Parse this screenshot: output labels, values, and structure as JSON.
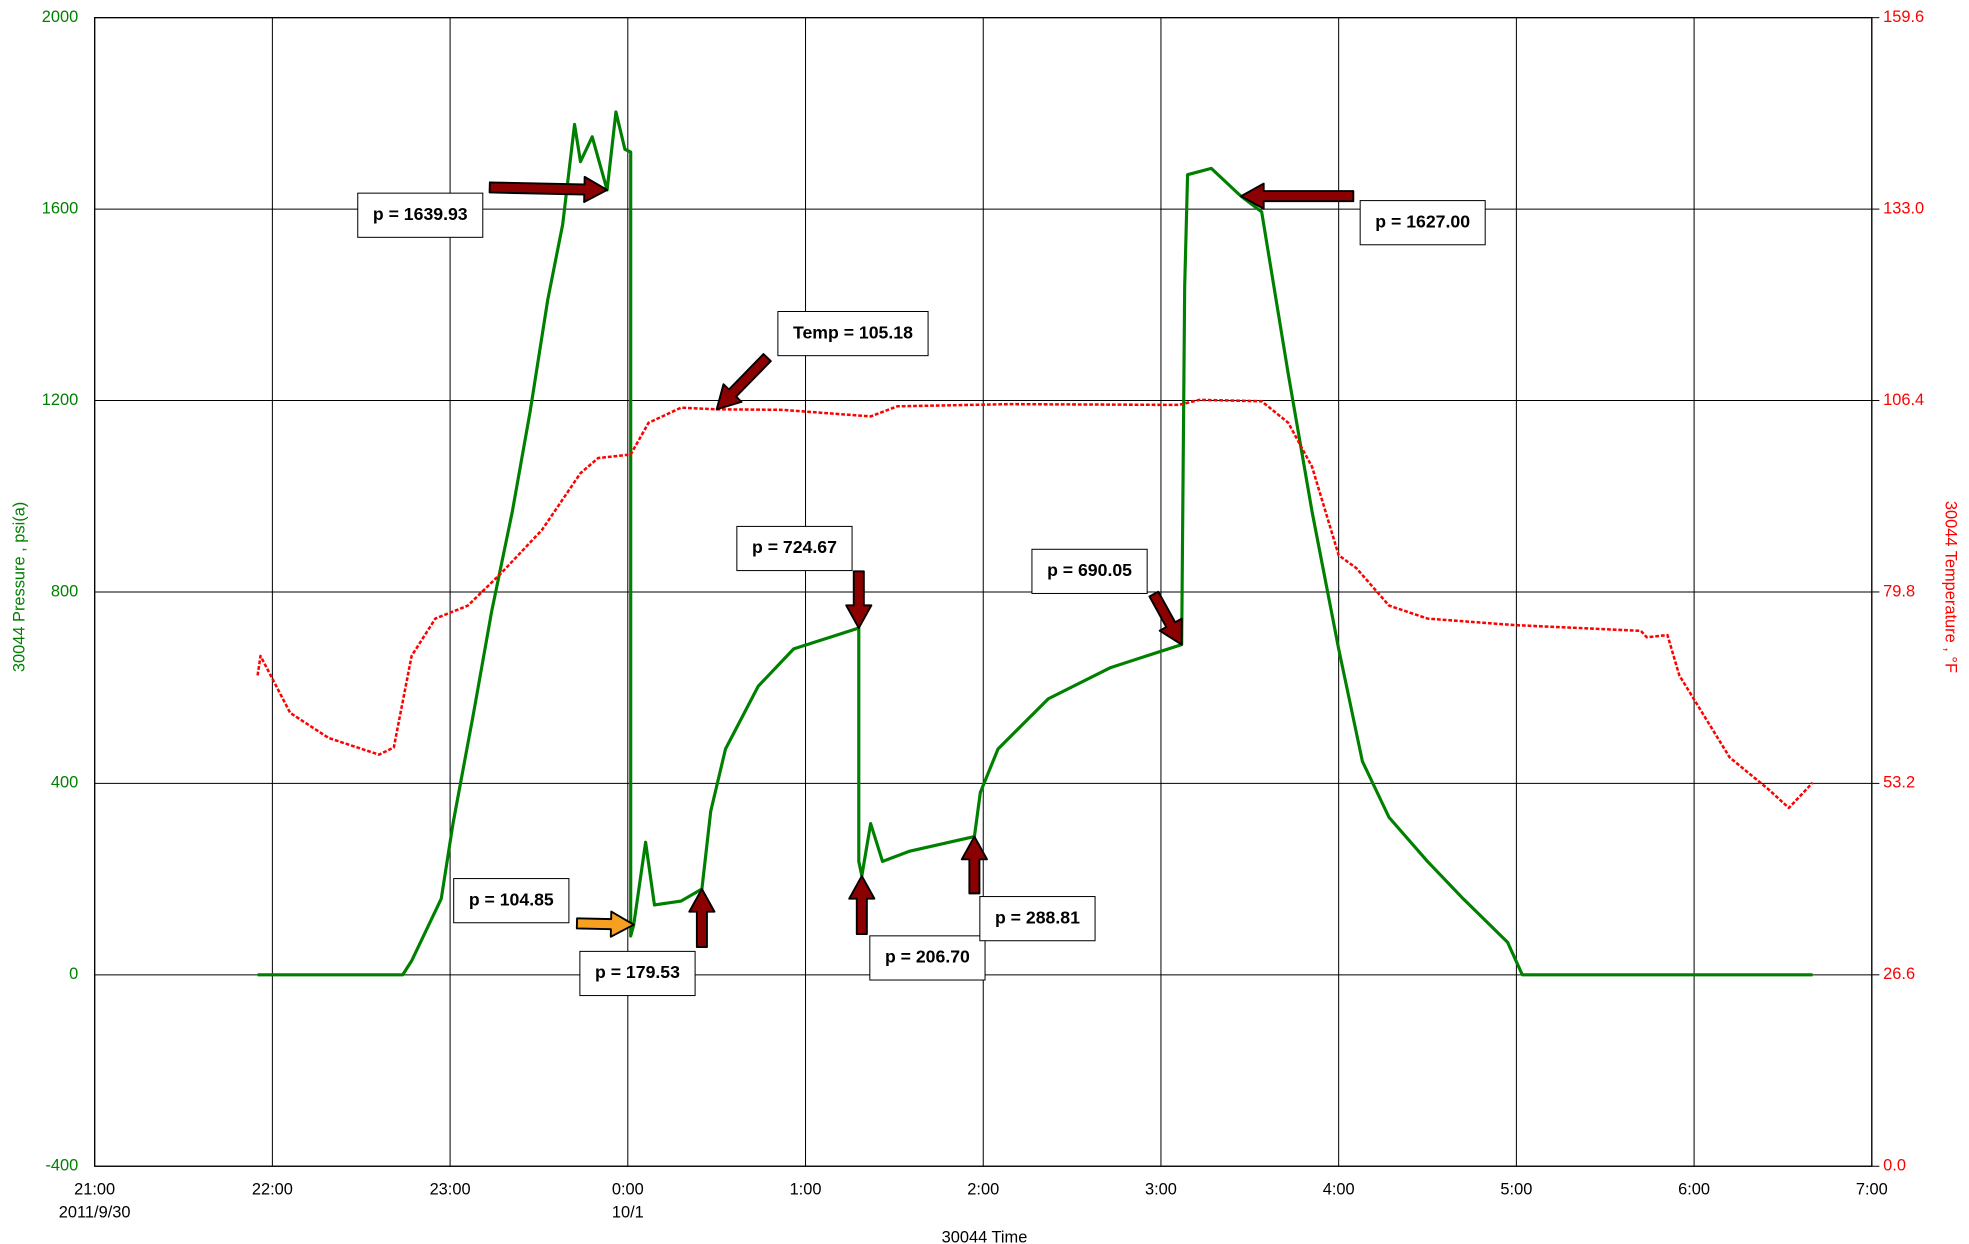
{
  "chart_data": {
    "type": "line",
    "x_label": "30044 Time",
    "y_label": "30044 Pressure , psi(a)",
    "y2_label": "30044 Temperature , °F",
    "xlim": [
      "2011-09-30T21:00",
      "2011-10-01T07:00"
    ],
    "xticks": [
      {
        "value": "2011-09-30T21:00",
        "label": "21:00"
      },
      {
        "value": "2011-09-30T22:00",
        "label": "22:00"
      },
      {
        "value": "2011-09-30T23:00",
        "label": "23:00"
      },
      {
        "value": "2011-10-01T00:00",
        "label": "0:00"
      },
      {
        "value": "2011-10-01T01:00",
        "label": "1:00"
      },
      {
        "value": "2011-10-01T02:00",
        "label": "2:00"
      },
      {
        "value": "2011-10-01T03:00",
        "label": "3:00"
      },
      {
        "value": "2011-10-01T04:00",
        "label": "4:00"
      },
      {
        "value": "2011-10-01T05:00",
        "label": "5:00"
      },
      {
        "value": "2011-10-01T06:00",
        "label": "6:00"
      },
      {
        "value": "2011-10-01T07:00",
        "label": "7:00"
      }
    ],
    "xtick_dates": [
      {
        "value": "2011-09-30T21:00",
        "label": "2011/9/30"
      },
      {
        "value": "2011-10-01T00:00",
        "label": "10/1"
      }
    ],
    "ylim": [
      -400,
      2000
    ],
    "yticks": [
      -400,
      0,
      400,
      800,
      1200,
      1600,
      2000
    ],
    "y2lim": [
      0,
      159.6
    ],
    "y2ticks": [
      {
        "value": 0,
        "label": "0.0"
      },
      26.6,
      53.2,
      79.8,
      106.4,
      {
        "value": 133,
        "label": "133.0"
      },
      159.6
    ],
    "grid": true,
    "y_color": "#008000",
    "y2_color": "#ff0000",
    "series": [
      {
        "name": "30044 Pressure",
        "color": "#008000",
        "axis": "y",
        "x": [
          "2011-09-30T21:55",
          "2011-09-30T22:44",
          "2011-09-30T22:47",
          "2011-09-30T22:51",
          "2011-09-30T22:57",
          "2011-09-30T23:01",
          "2011-09-30T23:08",
          "2011-09-30T23:14",
          "2011-09-30T23:21",
          "2011-09-30T23:27",
          "2011-09-30T23:33",
          "2011-09-30T23:38",
          "2011-09-30T23:42",
          "2011-09-30T23:44",
          "2011-09-30T23:48",
          "2011-09-30T23:53",
          "2011-09-30T23:56",
          "2011-09-30T23:59",
          "2011-10-01T00:01",
          "2011-10-01T00:01",
          "2011-10-01T00:02",
          "2011-10-01T00:06",
          "2011-10-01T00:09",
          "2011-10-01T00:18",
          "2011-10-01T00:25",
          "2011-10-01T00:28",
          "2011-10-01T00:33",
          "2011-10-01T00:44",
          "2011-10-01T00:56",
          "2011-10-01T01:18",
          "2011-10-01T01:18",
          "2011-10-01T01:19",
          "2011-10-01T01:22",
          "2011-10-01T01:26",
          "2011-10-01T01:35",
          "2011-10-01T01:57",
          "2011-10-01T01:59",
          "2011-10-01T02:05",
          "2011-10-01T02:22",
          "2011-10-01T02:43",
          "2011-10-01T03:07",
          "2011-10-01T03:08",
          "2011-10-01T03:09",
          "2011-10-01T03:17",
          "2011-10-01T03:26",
          "2011-10-01T03:27",
          "2011-10-01T03:34",
          "2011-10-01T03:43",
          "2011-10-01T03:51",
          "2011-10-01T04:00",
          "2011-10-01T04:08",
          "2011-10-01T04:17",
          "2011-10-01T04:30",
          "2011-10-01T04:42",
          "2011-10-01T04:57",
          "2011-10-01T05:02",
          "2011-10-01T06:40"
        ],
        "values": [
          0,
          0,
          29,
          81,
          159,
          316,
          550,
          759,
          968,
          1177,
          1411,
          1568,
          1777,
          1699,
          1751,
          1639.93,
          1803,
          1725,
          1719,
          81,
          104.85,
          277,
          146,
          154,
          179.53,
          342,
          472,
          603,
          681,
          724.67,
          237,
          206.7,
          316,
          237,
          258,
          288.81,
          381,
          472,
          577,
          642,
          690.05,
          1438,
          1672,
          1685,
          1633,
          1627,
          1594,
          1255,
          968,
          681,
          446,
          329,
          237,
          159,
          68,
          0,
          0
        ]
      },
      {
        "name": "30044 Temperature",
        "color": "#ff0000",
        "axis": "y2",
        "x": [
          "2011-09-30T21:55",
          "2011-09-30T21:56",
          "2011-09-30T22:06",
          "2011-09-30T22:19",
          "2011-09-30T22:36",
          "2011-09-30T22:41",
          "2011-09-30T22:47",
          "2011-09-30T22:55",
          "2011-09-30T23:06",
          "2011-09-30T23:17",
          "2011-09-30T23:31",
          "2011-09-30T23:44",
          "2011-09-30T23:50",
          "2011-10-01T00:01",
          "2011-10-01T00:07",
          "2011-10-01T00:18",
          "2011-10-01T00:30",
          "2011-10-01T00:52",
          "2011-10-01T01:22",
          "2011-10-01T01:31",
          "2011-10-01T02:09",
          "2011-10-01T03:06",
          "2011-10-01T03:13",
          "2011-10-01T03:34",
          "2011-10-01T03:43",
          "2011-10-01T03:51",
          "2011-10-01T04:00",
          "2011-10-01T04:06",
          "2011-10-01T04:17",
          "2011-10-01T04:30",
          "2011-10-01T04:59",
          "2011-10-01T05:42",
          "2011-10-01T05:44",
          "2011-10-01T05:51",
          "2011-10-01T05:55",
          "2011-10-01T06:12",
          "2011-10-01T06:25",
          "2011-10-01T06:32",
          "2011-10-01T06:40"
        ],
        "values": [
          68.2,
          70.9,
          63.0,
          59.5,
          57.2,
          58.2,
          70.9,
          76.1,
          77.9,
          82.3,
          88.4,
          96.3,
          98.4,
          98.9,
          103.3,
          105.4,
          105.18,
          105.1,
          104.2,
          105.6,
          105.9,
          105.8,
          106.5,
          106.3,
          103.3,
          97.2,
          84.9,
          83.1,
          77.9,
          76.1,
          75.2,
          74.4,
          73.5,
          73.8,
          68.2,
          56.8,
          52.4,
          49.8,
          53.3
        ]
      }
    ],
    "annotations": [
      {
        "text": "p = 1639.93",
        "x": "2011-09-30T23:53",
        "value": 1639.93,
        "axis": "y",
        "arrow_color": "#8b0000"
      },
      {
        "text": "p = 1627.00",
        "x": "2011-10-01T03:27",
        "value": 1627,
        "axis": "y",
        "arrow_color": "#8b0000"
      },
      {
        "text": "Temp = 105.18",
        "x": "2011-10-01T00:30",
        "value": 105.18,
        "axis": "y2",
        "arrow_color": "#8b0000"
      },
      {
        "text": "p = 724.67",
        "x": "2011-10-01T01:18",
        "value": 724.67,
        "axis": "y",
        "arrow_color": "#8b0000"
      },
      {
        "text": "p = 690.05",
        "x": "2011-10-01T03:07",
        "value": 690.05,
        "axis": "y",
        "arrow_color": "#8b0000"
      },
      {
        "text": "p = 104.85",
        "x": "2011-10-01T00:02",
        "value": 104.85,
        "axis": "y",
        "arrow_color": "#f5a020"
      },
      {
        "text": "p = 179.53",
        "x": "2011-10-01T00:25",
        "value": 179.53,
        "axis": "y",
        "arrow_color": "#8b0000"
      },
      {
        "text": "p = 206.70",
        "x": "2011-10-01T01:19",
        "value": 206.7,
        "axis": "y",
        "arrow_color": "#8b0000"
      },
      {
        "text": "p = 288.81",
        "x": "2011-10-01T01:57",
        "value": 288.81,
        "axis": "y",
        "arrow_color": "#8b0000"
      }
    ]
  }
}
